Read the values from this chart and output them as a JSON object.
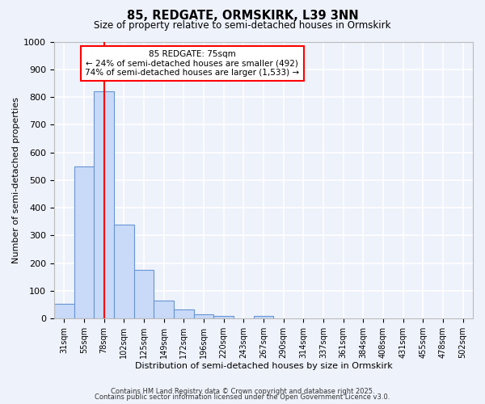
{
  "title": "85, REDGATE, ORMSKIRK, L39 3NN",
  "subtitle": "Size of property relative to semi-detached houses in Ormskirk",
  "xlabel": "Distribution of semi-detached houses by size in Ormskirk",
  "ylabel": "Number of semi-detached properties",
  "bar_labels": [
    "31sqm",
    "55sqm",
    "78sqm",
    "102sqm",
    "125sqm",
    "149sqm",
    "172sqm",
    "196sqm",
    "220sqm",
    "243sqm",
    "267sqm",
    "290sqm",
    "314sqm",
    "337sqm",
    "361sqm",
    "384sqm",
    "408sqm",
    "431sqm",
    "455sqm",
    "478sqm",
    "502sqm"
  ],
  "bar_values": [
    52,
    550,
    820,
    340,
    175,
    65,
    32,
    15,
    8,
    2,
    8,
    0,
    0,
    0,
    0,
    0,
    0,
    0,
    0,
    0,
    0
  ],
  "bar_color": "#c9daf8",
  "bar_edge_color": "#6694d4",
  "background_color": "#eef2fb",
  "grid_color": "#ffffff",
  "vline_x": 2,
  "vline_color": "red",
  "ylim": [
    0,
    1000
  ],
  "yticks": [
    0,
    100,
    200,
    300,
    400,
    500,
    600,
    700,
    800,
    900,
    1000
  ],
  "annotation_title": "85 REDGATE: 75sqm",
  "annotation_line1": "← 24% of semi-detached houses are smaller (492)",
  "annotation_line2": "74% of semi-detached houses are larger (1,533) →",
  "annotation_box_color": "white",
  "annotation_box_edge": "red",
  "footer1": "Contains HM Land Registry data © Crown copyright and database right 2025.",
  "footer2": "Contains public sector information licensed under the Open Government Licence v3.0."
}
